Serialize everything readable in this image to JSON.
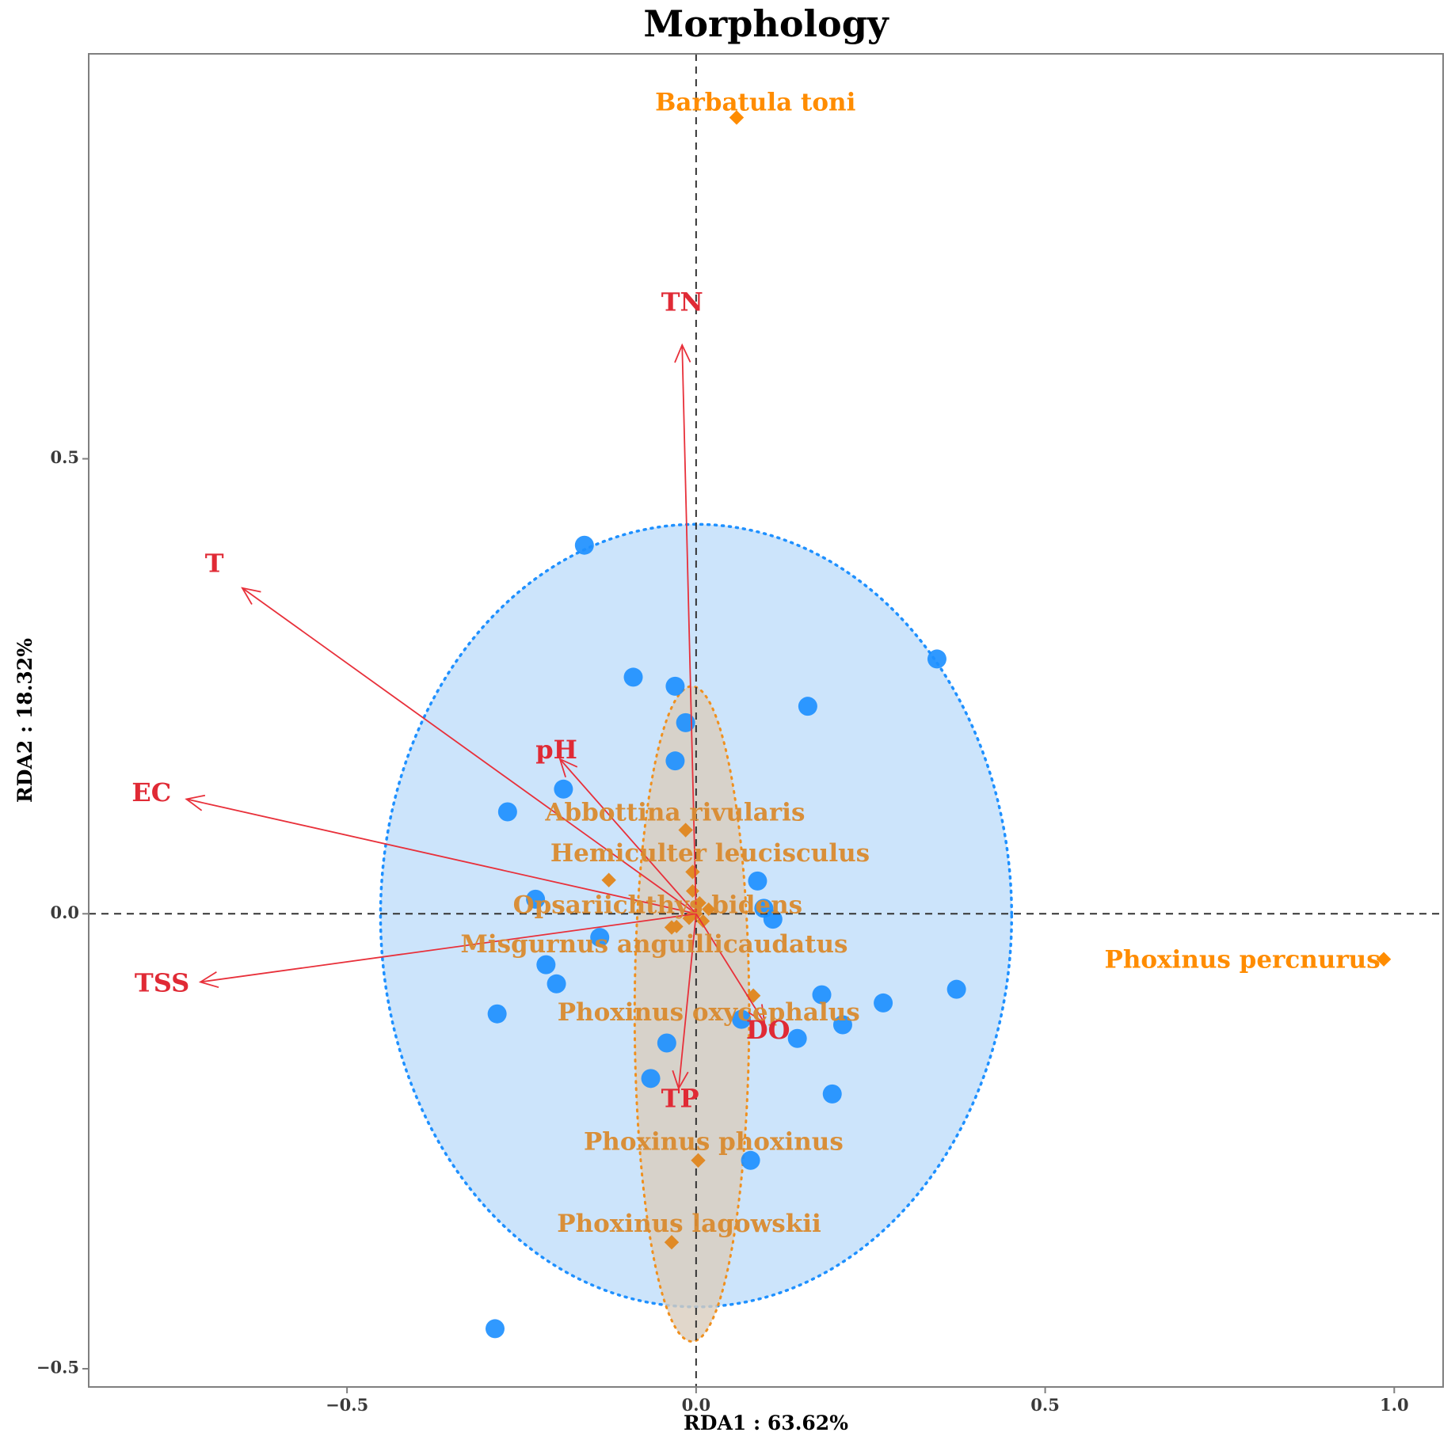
{
  "colors": {
    "site_point": "#1e90ff",
    "site_ellipse_fill": "#cce4fb",
    "site_ellipse_stroke": "#1e90ff",
    "species_ellipse_fill": "#d9cdbe",
    "species_ellipse_stroke": "#f0901e",
    "species_marker": "#e08a26",
    "species_label": "#d98a2e",
    "species_outlier": "#ff8c00",
    "env_arrow": "#e8303a",
    "env_label": "#e02a35",
    "ref_line": "#333333"
  },
  "chart_data": {
    "type": "scatter",
    "title": "Morphology",
    "xlabel": "RDA1 : 63.62%",
    "ylabel": "RDA2 : 18.32%",
    "xlim": [
      -0.87,
      1.07
    ],
    "ylim": [
      -0.52,
      0.945
    ],
    "x_ticks": [
      -0.5,
      0.0,
      0.5,
      1.0
    ],
    "x_tick_labels": [
      "−0.5",
      "0.0",
      "0.5",
      "1.0"
    ],
    "y_ticks": [
      -0.5,
      0.0,
      0.5
    ],
    "y_tick_labels": [
      "−0.5",
      "0.0",
      "0.5"
    ],
    "reference_lines": {
      "x": 0,
      "y": 0,
      "style": "dashed"
    },
    "grid": false,
    "site_ellipse": {
      "cx": 0.0,
      "cy": -0.002,
      "rx": 0.452,
      "ry": 0.43
    },
    "species_ellipse": {
      "cx": -0.006,
      "cy": -0.11,
      "rx": 0.082,
      "ry": 0.36
    },
    "sites": [
      {
        "x": -0.16,
        "y": 0.405
      },
      {
        "x": -0.09,
        "y": 0.26
      },
      {
        "x": -0.03,
        "y": 0.25
      },
      {
        "x": -0.015,
        "y": 0.21
      },
      {
        "x": -0.03,
        "y": 0.168
      },
      {
        "x": 0.16,
        "y": 0.228
      },
      {
        "x": 0.345,
        "y": 0.28
      },
      {
        "x": -0.19,
        "y": 0.137
      },
      {
        "x": -0.27,
        "y": 0.112
      },
      {
        "x": 0.088,
        "y": 0.036
      },
      {
        "x": -0.23,
        "y": 0.016
      },
      {
        "x": 0.097,
        "y": 0.006
      },
      {
        "x": 0.11,
        "y": -0.006
      },
      {
        "x": -0.138,
        "y": -0.026
      },
      {
        "x": -0.215,
        "y": -0.056
      },
      {
        "x": -0.2,
        "y": -0.077
      },
      {
        "x": 0.18,
        "y": -0.089
      },
      {
        "x": 0.268,
        "y": -0.098
      },
      {
        "x": 0.373,
        "y": -0.083
      },
      {
        "x": -0.285,
        "y": -0.11
      },
      {
        "x": 0.065,
        "y": -0.116
      },
      {
        "x": 0.21,
        "y": -0.122
      },
      {
        "x": 0.145,
        "y": -0.137
      },
      {
        "x": -0.042,
        "y": -0.142
      },
      {
        "x": -0.065,
        "y": -0.181
      },
      {
        "x": 0.195,
        "y": -0.198
      },
      {
        "x": 0.078,
        "y": -0.271
      },
      {
        "x": -0.288,
        "y": -0.456
      }
    ],
    "env_vectors": [
      {
        "name": "TN",
        "x": -0.02,
        "y": 0.625,
        "lx": -0.02,
        "ly": 0.67
      },
      {
        "name": "T",
        "x": -0.65,
        "y": 0.358,
        "lx": -0.69,
        "ly": 0.383
      },
      {
        "name": "EC",
        "x": -0.73,
        "y": 0.126,
        "lx": -0.78,
        "ly": 0.131
      },
      {
        "name": "TSS",
        "x": -0.71,
        "y": -0.075,
        "lx": -0.765,
        "ly": -0.078
      },
      {
        "name": "pH",
        "x": -0.195,
        "y": 0.17,
        "lx": -0.2,
        "ly": 0.178
      },
      {
        "name": "DO",
        "x": 0.098,
        "y": -0.12,
        "lx": 0.103,
        "ly": -0.13
      },
      {
        "name": "TP",
        "x": -0.025,
        "y": -0.192,
        "lx": -0.023,
        "ly": -0.205
      }
    ],
    "species": [
      {
        "name": "Barbatula toni",
        "x": 0.058,
        "y": 0.875,
        "lx": 0.085,
        "ly": 0.89,
        "anchor": "middle",
        "outlier": true
      },
      {
        "name": "Abbottina rivularis",
        "x": -0.015,
        "y": 0.092,
        "lx": -0.03,
        "ly": 0.11,
        "anchor": "middle",
        "outlier": false
      },
      {
        "name": "Hemiculter leucisculus",
        "x": -0.005,
        "y": 0.046,
        "lx": 0.02,
        "ly": 0.065,
        "anchor": "middle",
        "outlier": false
      },
      {
        "name": "Opsariichthys bidens",
        "x": -0.125,
        "y": 0.037,
        "lx": -0.055,
        "ly": 0.008,
        "anchor": "middle",
        "outlier": false
      },
      {
        "name": "Misgurnus anguillicaudatus",
        "x": -0.035,
        "y": -0.015,
        "lx": -0.06,
        "ly": -0.035,
        "anchor": "middle",
        "outlier": false
      },
      {
        "name": "Phoxinus percnurus",
        "x": 0.985,
        "y": -0.05,
        "lx": 0.98,
        "ly": -0.052,
        "anchor": "end",
        "outlier": true
      },
      {
        "name": "Phoxinus oxycephalus",
        "x": 0.082,
        "y": -0.09,
        "lx": 0.018,
        "ly": -0.11,
        "anchor": "middle",
        "outlier": false
      },
      {
        "name": "Phoxinus phoxinus",
        "x": 0.003,
        "y": -0.271,
        "lx": 0.025,
        "ly": -0.252,
        "anchor": "middle",
        "outlier": false
      },
      {
        "name": "Phoxinus lagowskii",
        "x": -0.035,
        "y": -0.361,
        "lx": -0.01,
        "ly": -0.342,
        "anchor": "middle",
        "outlier": false
      }
    ],
    "species_center_cluster": [
      {
        "x": -0.005,
        "y": 0.025
      },
      {
        "x": 0.005,
        "y": 0.012
      },
      {
        "x": 0.018,
        "y": 0.005
      },
      {
        "x": -0.01,
        "y": -0.005
      },
      {
        "x": 0.01,
        "y": -0.008
      },
      {
        "x": -0.028,
        "y": -0.014
      },
      {
        "x": 0.0,
        "y": 0.0
      }
    ]
  }
}
